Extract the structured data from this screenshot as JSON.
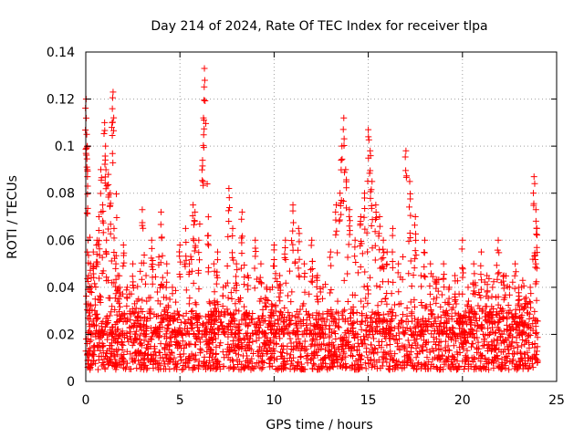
{
  "chart_data": {
    "type": "scatter",
    "title": "Day 214 of 2024, Rate Of TEC Index for receiver tlpa",
    "xlabel": "GPS time / hours",
    "ylabel": "ROTI / TECUs",
    "xlim": [
      0,
      25
    ],
    "ylim": [
      0,
      0.14
    ],
    "x_ticks": [
      0,
      5,
      10,
      15,
      20,
      25
    ],
    "x_tick_labels": [
      "0",
      "5",
      "10",
      "15",
      "20",
      "25"
    ],
    "y_ticks": [
      0,
      0.02,
      0.04,
      0.06,
      0.08,
      0.1,
      0.12,
      0.14
    ],
    "y_tick_labels": [
      "0",
      "0.02",
      "0.04",
      "0.06",
      "0.08",
      "0.1",
      "0.12",
      "0.14"
    ],
    "grid": true,
    "marker": "plus",
    "color": "#ff0000",
    "series": [
      {
        "name": "ROTI",
        "x": [
          0.02,
          0.05,
          0.08,
          0.1,
          0.12,
          0.15,
          0.2,
          0.25,
          0.3,
          0.4,
          0.5,
          0.6,
          0.7,
          0.8,
          0.9,
          1.0,
          1.05,
          1.1,
          1.2,
          1.3,
          1.4,
          1.45,
          1.5,
          1.6,
          1.7,
          1.8,
          2.0,
          2.2,
          2.5,
          2.8,
          3.0,
          3.2,
          3.5,
          3.8,
          4.0,
          4.3,
          4.6,
          5.0,
          5.3,
          5.5,
          5.7,
          5.8,
          6.0,
          6.2,
          6.25,
          6.3,
          6.5,
          6.8,
          7.0,
          7.3,
          7.6,
          7.8,
          8.0,
          8.3,
          8.6,
          9.0,
          9.3,
          9.6,
          10.0,
          10.3,
          10.6,
          11.0,
          11.3,
          11.6,
          12.0,
          12.3,
          12.6,
          13.0,
          13.3,
          13.5,
          13.6,
          13.7,
          13.8,
          14.0,
          14.3,
          14.6,
          14.8,
          15.0,
          15.1,
          15.2,
          15.4,
          15.6,
          15.8,
          16.0,
          16.3,
          16.6,
          17.0,
          17.2,
          17.5,
          17.8,
          18.0,
          18.3,
          18.6,
          19.0,
          19.3,
          19.6,
          20.0,
          20.3,
          20.6,
          21.0,
          21.3,
          21.6,
          21.9,
          22.2,
          22.5,
          22.8,
          23.0,
          23.3,
          23.6,
          23.8,
          23.9,
          23.95
        ],
        "y": [
          0.12,
          0.105,
          0.1,
          0.083,
          0.06,
          0.045,
          0.03,
          0.05,
          0.04,
          0.055,
          0.035,
          0.06,
          0.07,
          0.09,
          0.075,
          0.11,
          0.1,
          0.06,
          0.088,
          0.08,
          0.11,
          0.123,
          0.065,
          0.05,
          0.045,
          0.04,
          0.058,
          0.04,
          0.05,
          0.035,
          0.073,
          0.045,
          0.06,
          0.038,
          0.072,
          0.05,
          0.04,
          0.058,
          0.065,
          0.05,
          0.075,
          0.072,
          0.06,
          0.094,
          0.112,
          0.133,
          0.062,
          0.05,
          0.055,
          0.04,
          0.082,
          0.065,
          0.05,
          0.072,
          0.045,
          0.06,
          0.05,
          0.04,
          0.058,
          0.045,
          0.06,
          0.075,
          0.065,
          0.05,
          0.06,
          0.045,
          0.04,
          0.055,
          0.075,
          0.08,
          0.1,
          0.112,
          0.09,
          0.073,
          0.06,
          0.07,
          0.08,
          0.107,
          0.098,
          0.085,
          0.075,
          0.07,
          0.06,
          0.055,
          0.065,
          0.05,
          0.098,
          0.085,
          0.07,
          0.045,
          0.06,
          0.05,
          0.042,
          0.05,
          0.04,
          0.045,
          0.06,
          0.04,
          0.05,
          0.055,
          0.045,
          0.04,
          0.06,
          0.045,
          0.04,
          0.05,
          0.04,
          0.035,
          0.04,
          0.087,
          0.073,
          0.065
        ]
      }
    ],
    "dense_band": {
      "description_values": "dense bulk of points",
      "x_range": [
        0,
        24
      ],
      "y_range": [
        0.005,
        0.03
      ]
    }
  }
}
